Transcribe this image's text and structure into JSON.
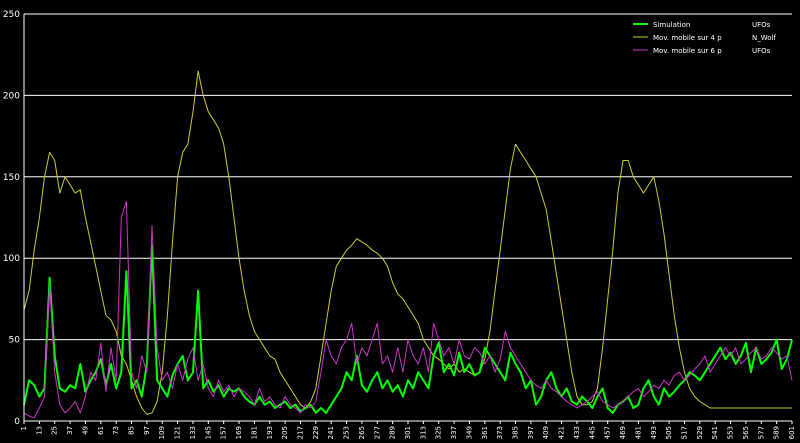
{
  "chart_data": {
    "type": "line",
    "ylim": [
      0,
      250
    ],
    "yticks": [
      "0",
      "50",
      "100",
      "150",
      "200",
      "250"
    ],
    "grid": "horizontal",
    "legend_position": "top-right",
    "xticks": [
      "1",
      "13",
      "25",
      "37",
      "49",
      "61",
      "73",
      "85",
      "97",
      "109",
      "121",
      "133",
      "145",
      "157",
      "169",
      "181",
      "193",
      "205",
      "217",
      "229",
      "241",
      "253",
      "265",
      "277",
      "289",
      "301",
      "313",
      "325",
      "337",
      "349",
      "361",
      "373",
      "385",
      "397",
      "409",
      "421",
      "433",
      "445",
      "457",
      "469",
      "481",
      "493",
      "505",
      "517",
      "529",
      "541",
      "553",
      "565",
      "577",
      "589",
      "601"
    ],
    "legend": [
      {
        "label": "Simulation",
        "right_label": "UFOs",
        "color": "#00ff00"
      },
      {
        "label": "Mov. mobile sur 4 p",
        "right_label": "N_Wolf",
        "color": "#cccc33"
      },
      {
        "label": "Mov. mobile sur 6 p",
        "right_label": "UFOs",
        "color": "#cc33cc"
      }
    ],
    "series": [
      {
        "name": "Mov. mobile sur 4 p",
        "color": "#cccc33",
        "x": [
          1,
          5,
          9,
          13,
          17,
          21,
          25,
          29,
          33,
          37,
          41,
          45,
          49,
          53,
          57,
          61,
          65,
          69,
          73,
          77,
          81,
          85,
          89,
          93,
          97,
          101,
          105,
          109,
          113,
          117,
          121,
          125,
          129,
          133,
          137,
          141,
          145,
          149,
          153,
          157,
          161,
          165,
          169,
          173,
          177,
          181,
          185,
          189,
          193,
          197,
          201,
          205,
          209,
          213,
          217,
          221,
          225,
          229,
          233,
          237,
          241,
          245,
          249,
          253,
          257,
          261,
          265,
          269,
          273,
          277,
          281,
          285,
          289,
          293,
          297,
          301,
          305,
          309,
          313,
          317,
          321,
          325,
          329,
          333,
          337,
          341,
          345,
          349,
          353,
          357,
          361,
          365,
          369,
          373,
          377,
          381,
          385,
          389,
          393,
          397,
          401,
          405,
          409,
          413,
          417,
          421,
          425,
          429,
          433,
          437,
          441,
          445,
          449,
          453,
          457,
          461,
          465,
          469,
          473,
          477,
          481,
          485,
          489,
          493,
          497,
          501,
          505,
          509,
          513,
          517,
          521,
          525,
          529,
          533,
          537,
          541,
          545,
          549,
          553,
          557,
          561,
          565,
          569,
          573,
          577,
          581,
          585,
          589,
          593,
          597,
          601
        ],
        "values": [
          68,
          80,
          105,
          125,
          150,
          165,
          160,
          140,
          150,
          145,
          140,
          142,
          125,
          110,
          95,
          80,
          65,
          62,
          55,
          40,
          35,
          25,
          15,
          8,
          4,
          5,
          12,
          30,
          65,
          110,
          150,
          165,
          170,
          190,
          215,
          200,
          190,
          185,
          180,
          170,
          150,
          125,
          100,
          80,
          65,
          55,
          50,
          45,
          40,
          38,
          30,
          25,
          20,
          15,
          10,
          8,
          12,
          20,
          40,
          60,
          80,
          95,
          100,
          105,
          108,
          112,
          110,
          108,
          105,
          103,
          100,
          95,
          85,
          78,
          75,
          70,
          65,
          60,
          50,
          45,
          40,
          38,
          35,
          32,
          35,
          30,
          32,
          30,
          28,
          30,
          38,
          55,
          80,
          105,
          130,
          155,
          170,
          165,
          160,
          155,
          150,
          140,
          130,
          110,
          90,
          70,
          50,
          30,
          15,
          10,
          10,
          12,
          20,
          45,
          75,
          105,
          140,
          160,
          160,
          150,
          145,
          140,
          145,
          150,
          135,
          115,
          90,
          65,
          45,
          30,
          20,
          15,
          12,
          10,
          8,
          8,
          8,
          8,
          8,
          8,
          8,
          8,
          8,
          8,
          8,
          8,
          8,
          8,
          8,
          8,
          8
        ]
      },
      {
        "name": "Simulation",
        "color": "#00ff00",
        "x": [
          1,
          5,
          9,
          13,
          17,
          21,
          25,
          29,
          33,
          37,
          41,
          45,
          49,
          53,
          57,
          61,
          65,
          69,
          73,
          77,
          81,
          85,
          89,
          93,
          97,
          101,
          105,
          109,
          113,
          117,
          121,
          125,
          129,
          133,
          137,
          141,
          145,
          149,
          153,
          157,
          161,
          165,
          169,
          173,
          177,
          181,
          185,
          189,
          193,
          197,
          201,
          205,
          209,
          213,
          217,
          221,
          225,
          229,
          233,
          237,
          241,
          245,
          249,
          253,
          257,
          261,
          265,
          269,
          273,
          277,
          281,
          285,
          289,
          293,
          297,
          301,
          305,
          309,
          313,
          317,
          321,
          325,
          329,
          333,
          337,
          341,
          345,
          349,
          353,
          357,
          361,
          365,
          369,
          373,
          377,
          381,
          385,
          389,
          393,
          397,
          401,
          405,
          409,
          413,
          417,
          421,
          425,
          429,
          433,
          437,
          441,
          445,
          449,
          453,
          457,
          461,
          465,
          469,
          473,
          477,
          481,
          485,
          489,
          493,
          497,
          501,
          505,
          509,
          513,
          517,
          521,
          525,
          529,
          533,
          537,
          541,
          545,
          549,
          553,
          557,
          561,
          565,
          569,
          573,
          577,
          581,
          585,
          589,
          593,
          597,
          601
        ],
        "values": [
          10,
          25,
          22,
          15,
          20,
          88,
          40,
          20,
          18,
          22,
          20,
          35,
          18,
          25,
          30,
          38,
          22,
          35,
          20,
          30,
          92,
          20,
          25,
          15,
          35,
          108,
          25,
          20,
          15,
          28,
          35,
          40,
          25,
          30,
          80,
          20,
          25,
          18,
          22,
          15,
          20,
          18,
          20,
          15,
          12,
          10,
          15,
          10,
          12,
          8,
          10,
          12,
          8,
          10,
          6,
          8,
          10,
          5,
          8,
          5,
          10,
          15,
          20,
          30,
          25,
          40,
          22,
          18,
          25,
          30,
          20,
          25,
          18,
          22,
          15,
          25,
          20,
          30,
          25,
          20,
          40,
          48,
          30,
          35,
          28,
          42,
          30,
          35,
          28,
          30,
          45,
          40,
          35,
          30,
          25,
          42,
          35,
          30,
          20,
          25,
          10,
          15,
          25,
          30,
          20,
          15,
          20,
          12,
          10,
          15,
          12,
          8,
          15,
          20,
          8,
          5,
          10,
          12,
          15,
          8,
          10,
          20,
          25,
          15,
          10,
          20,
          15,
          18,
          22,
          25,
          30,
          28,
          25,
          30,
          35,
          40,
          45,
          38,
          42,
          35,
          40,
          48,
          30,
          45,
          35,
          38,
          42,
          50,
          32,
          38,
          50
        ]
      },
      {
        "name": "Mov. mobile sur 6 p",
        "color": "#cc33cc",
        "x": [
          1,
          5,
          9,
          13,
          17,
          21,
          25,
          29,
          33,
          37,
          41,
          45,
          49,
          53,
          57,
          61,
          65,
          69,
          73,
          77,
          81,
          85,
          89,
          93,
          97,
          101,
          105,
          109,
          113,
          117,
          121,
          125,
          129,
          133,
          137,
          141,
          145,
          149,
          153,
          157,
          161,
          165,
          169,
          173,
          177,
          181,
          185,
          189,
          193,
          197,
          201,
          205,
          209,
          213,
          217,
          221,
          225,
          229,
          233,
          237,
          241,
          245,
          249,
          253,
          257,
          261,
          265,
          269,
          273,
          277,
          281,
          285,
          289,
          293,
          297,
          301,
          305,
          309,
          313,
          317,
          321,
          325,
          329,
          333,
          337,
          341,
          345,
          349,
          353,
          357,
          361,
          365,
          369,
          373,
          377,
          381,
          385,
          389,
          393,
          397,
          401,
          405,
          409,
          413,
          417,
          421,
          425,
          429,
          433,
          437,
          441,
          445,
          449,
          453,
          457,
          461,
          465,
          469,
          473,
          477,
          481,
          485,
          489,
          493,
          497,
          501,
          505,
          509,
          513,
          517,
          521,
          525,
          529,
          533,
          537,
          541,
          545,
          549,
          553,
          557,
          561,
          565,
          569,
          573,
          577,
          581,
          585,
          589,
          593,
          597,
          601
        ],
        "values": [
          5,
          3,
          2,
          8,
          15,
          85,
          30,
          10,
          5,
          8,
          12,
          5,
          15,
          30,
          25,
          48,
          18,
          45,
          25,
          125,
          135,
          30,
          20,
          40,
          30,
          120,
          45,
          25,
          30,
          20,
          35,
          25,
          38,
          45,
          25,
          35,
          20,
          15,
          25,
          18,
          22,
          15,
          20,
          18,
          15,
          10,
          20,
          12,
          15,
          10,
          8,
          15,
          10,
          8,
          5,
          10,
          8,
          12,
          30,
          50,
          40,
          35,
          45,
          50,
          60,
          35,
          45,
          40,
          50,
          60,
          35,
          40,
          30,
          45,
          30,
          50,
          40,
          35,
          45,
          30,
          60,
          50,
          40,
          45,
          35,
          50,
          40,
          38,
          45,
          42,
          35,
          40,
          30,
          38,
          55,
          45,
          40,
          35,
          30,
          25,
          22,
          20,
          25,
          20,
          18,
          15,
          12,
          10,
          8,
          10,
          12,
          15,
          18,
          12,
          10,
          8,
          10,
          12,
          15,
          18,
          20,
          15,
          18,
          22,
          20,
          25,
          22,
          28,
          30,
          25,
          28,
          32,
          35,
          40,
          30,
          35,
          40,
          45,
          40,
          45,
          35,
          38,
          42,
          45,
          38,
          40,
          45,
          42,
          38,
          40,
          25
        ]
      }
    ]
  }
}
